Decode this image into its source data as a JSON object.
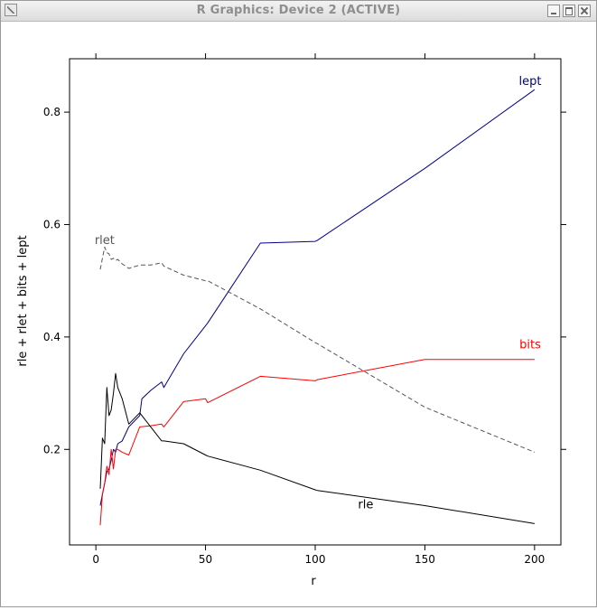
{
  "window": {
    "title": "R Graphics: Device 2 (ACTIVE)",
    "buttons": {
      "minimize": "minimize",
      "maximize": "maximize",
      "close": "close"
    }
  },
  "chart_data": {
    "type": "line",
    "title": "",
    "xlabel": "r",
    "ylabel": "rle + rlet + bits + lept",
    "xlim": [
      -12,
      212
    ],
    "ylim": [
      0.03,
      0.895
    ],
    "x_ticks": [
      0,
      50,
      100,
      150,
      200
    ],
    "y_ticks": [
      0.2,
      0.4,
      0.6,
      0.8
    ],
    "grid": false,
    "legend": "none",
    "series": [
      {
        "name": "lept",
        "color": "#00008b",
        "dash": "",
        "label_at": [
          198,
          0.848
        ],
        "points": [
          [
            2,
            0.1
          ],
          [
            3,
            0.12
          ],
          [
            4,
            0.14
          ],
          [
            5,
            0.16
          ],
          [
            6,
            0.165
          ],
          [
            7,
            0.18
          ],
          [
            8,
            0.2
          ],
          [
            9,
            0.195
          ],
          [
            10,
            0.21
          ],
          [
            12,
            0.215
          ],
          [
            15,
            0.24
          ],
          [
            20,
            0.26
          ],
          [
            21,
            0.29
          ],
          [
            25,
            0.305
          ],
          [
            30,
            0.32
          ],
          [
            31,
            0.31
          ],
          [
            40,
            0.37
          ],
          [
            50,
            0.42
          ],
          [
            51,
            0.425
          ],
          [
            75,
            0.567
          ],
          [
            100,
            0.57
          ],
          [
            101,
            0.572
          ],
          [
            150,
            0.7
          ],
          [
            200,
            0.84
          ]
        ]
      },
      {
        "name": "rlet",
        "color": "#555555",
        "dash": "5,3",
        "label_at": [
          4,
          0.565
        ],
        "points": [
          [
            2,
            0.52
          ],
          [
            3,
            0.54
          ],
          [
            4,
            0.56
          ],
          [
            5,
            0.55
          ],
          [
            6,
            0.548
          ],
          [
            7,
            0.538
          ],
          [
            8,
            0.54
          ],
          [
            9,
            0.536
          ],
          [
            10,
            0.538
          ],
          [
            12,
            0.53
          ],
          [
            15,
            0.522
          ],
          [
            20,
            0.528
          ],
          [
            25,
            0.528
          ],
          [
            30,
            0.532
          ],
          [
            31,
            0.526
          ],
          [
            40,
            0.51
          ],
          [
            50,
            0.5
          ],
          [
            51,
            0.5
          ],
          [
            75,
            0.45
          ],
          [
            100,
            0.39
          ],
          [
            101,
            0.388
          ],
          [
            150,
            0.275
          ],
          [
            200,
            0.195
          ]
        ]
      },
      {
        "name": "bits",
        "color": "#ff0000",
        "dash": "",
        "label_at": [
          198,
          0.38
        ],
        "points": [
          [
            2,
            0.065
          ],
          [
            3,
            0.12
          ],
          [
            4,
            0.14
          ],
          [
            5,
            0.17
          ],
          [
            6,
            0.155
          ],
          [
            7,
            0.2
          ],
          [
            8,
            0.165
          ],
          [
            9,
            0.2
          ],
          [
            10,
            0.2
          ],
          [
            12,
            0.195
          ],
          [
            15,
            0.19
          ],
          [
            20,
            0.24
          ],
          [
            25,
            0.242
          ],
          [
            30,
            0.245
          ],
          [
            31,
            0.24
          ],
          [
            40,
            0.285
          ],
          [
            50,
            0.29
          ],
          [
            51,
            0.283
          ],
          [
            75,
            0.33
          ],
          [
            100,
            0.322
          ],
          [
            101,
            0.324
          ],
          [
            150,
            0.36
          ],
          [
            200,
            0.36
          ]
        ]
      },
      {
        "name": "rle",
        "color": "#000000",
        "dash": "",
        "label_at": [
          123,
          0.095
        ],
        "points": [
          [
            2,
            0.13
          ],
          [
            3,
            0.22
          ],
          [
            4,
            0.21
          ],
          [
            5,
            0.31
          ],
          [
            6,
            0.26
          ],
          [
            7,
            0.27
          ],
          [
            8,
            0.3
          ],
          [
            9,
            0.335
          ],
          [
            10,
            0.31
          ],
          [
            12,
            0.29
          ],
          [
            15,
            0.245
          ],
          [
            20,
            0.265
          ],
          [
            25,
            0.24
          ],
          [
            30,
            0.215
          ],
          [
            31,
            0.215
          ],
          [
            40,
            0.21
          ],
          [
            50,
            0.19
          ],
          [
            51,
            0.188
          ],
          [
            75,
            0.163
          ],
          [
            100,
            0.128
          ],
          [
            101,
            0.127
          ],
          [
            150,
            0.1
          ],
          [
            200,
            0.068
          ]
        ]
      }
    ]
  }
}
